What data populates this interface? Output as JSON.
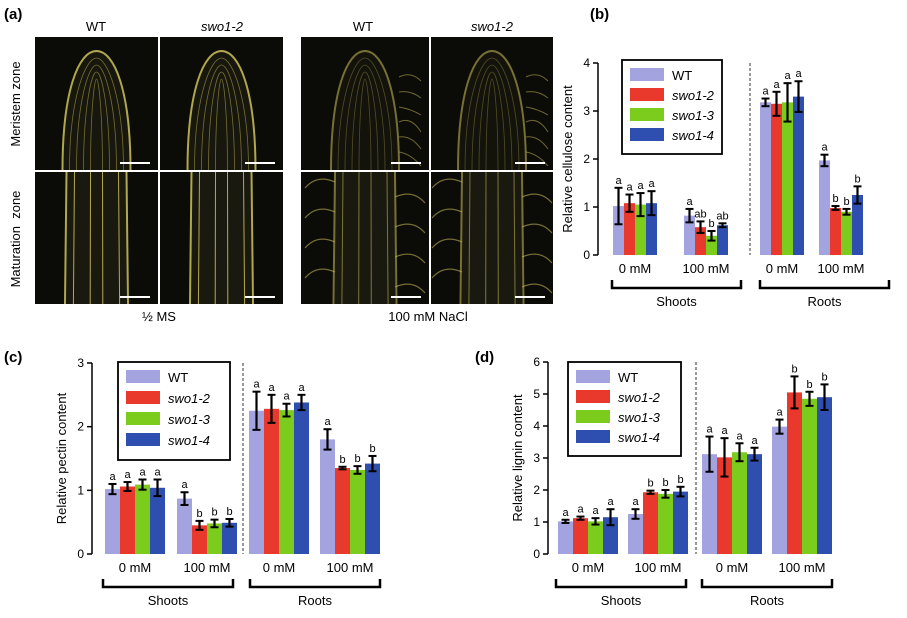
{
  "panel_labels": {
    "a": "(a)",
    "b": "(b)",
    "c": "(c)",
    "d": "(d)"
  },
  "micrograph": {
    "col_headers": [
      "WT",
      "swo1-2",
      "WT",
      "swo1-2"
    ],
    "row_labels": [
      "Meristem zone",
      "Maturation  zone"
    ],
    "group_labels": [
      "½ MS",
      "100 mM NaCl"
    ],
    "colors": {
      "background": "#0b0b08",
      "signal": "#cfc35a"
    }
  },
  "legend": [
    "WT",
    "swo1-2",
    "swo1-3",
    "swo1-4"
  ],
  "series_colors": [
    "#a3a3e0",
    "#e8392c",
    "#7ccc1e",
    "#2f4fb0"
  ],
  "chart_data": [
    {
      "type": "bar",
      "panel": "b",
      "title": "",
      "ylabel": "Relative cellulose content",
      "ylim": [
        0,
        4
      ],
      "yticks": [
        0,
        1,
        2,
        3,
        4
      ],
      "categories": [
        "0 mM",
        "100 mM",
        "0 mM",
        "100 mM"
      ],
      "groups": [
        "Shoots",
        "Roots"
      ],
      "series": [
        {
          "name": "WT",
          "values": [
            1.02,
            0.82,
            3.18,
            1.97
          ],
          "errors": [
            0.38,
            0.14,
            0.08,
            0.12
          ],
          "letters": [
            "a",
            "a",
            "a",
            "a"
          ]
        },
        {
          "name": "swo1-2",
          "values": [
            1.08,
            0.58,
            3.15,
            0.98
          ],
          "errors": [
            0.18,
            0.12,
            0.25,
            0.04
          ],
          "letters": [
            "a",
            "ab",
            "a",
            "b"
          ]
        },
        {
          "name": "swo1-3",
          "values": [
            1.05,
            0.4,
            3.18,
            0.9
          ],
          "errors": [
            0.24,
            0.1,
            0.4,
            0.06
          ],
          "letters": [
            "a",
            "b",
            "a",
            "b"
          ]
        },
        {
          "name": "swo1-4",
          "values": [
            1.08,
            0.62,
            3.3,
            1.25
          ],
          "errors": [
            0.25,
            0.04,
            0.32,
            0.18
          ],
          "letters": [
            "a",
            "ab",
            "a",
            "b"
          ]
        }
      ]
    },
    {
      "type": "bar",
      "panel": "c",
      "title": "",
      "ylabel": "Relative pectin content",
      "ylim": [
        0,
        3
      ],
      "yticks": [
        0,
        1,
        2,
        3
      ],
      "categories": [
        "0 mM",
        "100 mM",
        "0 mM",
        "100 mM"
      ],
      "groups": [
        "Shoots",
        "Roots"
      ],
      "series": [
        {
          "name": "WT",
          "values": [
            1.02,
            0.87,
            2.25,
            1.8
          ],
          "errors": [
            0.08,
            0.1,
            0.3,
            0.16
          ],
          "letters": [
            "a",
            "a",
            "a",
            "a"
          ]
        },
        {
          "name": "swo1-2",
          "values": [
            1.06,
            0.45,
            2.28,
            1.35
          ],
          "errors": [
            0.07,
            0.07,
            0.22,
            0.02
          ],
          "letters": [
            "a",
            "b",
            "a",
            "b"
          ]
        },
        {
          "name": "swo1-3",
          "values": [
            1.09,
            0.48,
            2.26,
            1.32
          ],
          "errors": [
            0.08,
            0.06,
            0.1,
            0.06
          ],
          "letters": [
            "a",
            "b",
            "a",
            "b"
          ]
        },
        {
          "name": "swo1-4",
          "values": [
            1.04,
            0.49,
            2.38,
            1.42
          ],
          "errors": [
            0.13,
            0.06,
            0.12,
            0.12
          ],
          "letters": [
            "a",
            "b",
            "a",
            "b"
          ]
        }
      ]
    },
    {
      "type": "bar",
      "panel": "d",
      "title": "",
      "ylabel": "Relative lignin content",
      "ylim": [
        0,
        6
      ],
      "yticks": [
        0,
        1,
        2,
        3,
        4,
        5,
        6
      ],
      "categories": [
        "0 mM",
        "100 mM",
        "0 mM",
        "100 mM"
      ],
      "groups": [
        "Shoots",
        "Roots"
      ],
      "series": [
        {
          "name": "WT",
          "values": [
            1.02,
            1.25,
            3.12,
            3.98
          ],
          "errors": [
            0.05,
            0.15,
            0.55,
            0.22
          ],
          "letters": [
            "a",
            "a",
            "a",
            "a"
          ]
        },
        {
          "name": "swo1-2",
          "values": [
            1.12,
            1.93,
            3.02,
            5.05
          ],
          "errors": [
            0.05,
            0.05,
            0.6,
            0.5
          ],
          "letters": [
            "a",
            "b",
            "a",
            "b"
          ]
        },
        {
          "name": "swo1-3",
          "values": [
            1.02,
            1.88,
            3.18,
            4.85
          ],
          "errors": [
            0.1,
            0.12,
            0.28,
            0.22
          ],
          "letters": [
            "a",
            "b",
            "a",
            "b"
          ]
        },
        {
          "name": "swo1-4",
          "values": [
            1.15,
            1.95,
            3.12,
            4.9
          ],
          "errors": [
            0.25,
            0.15,
            0.2,
            0.4
          ],
          "letters": [
            "a",
            "b",
            "a",
            "b"
          ]
        }
      ]
    }
  ]
}
